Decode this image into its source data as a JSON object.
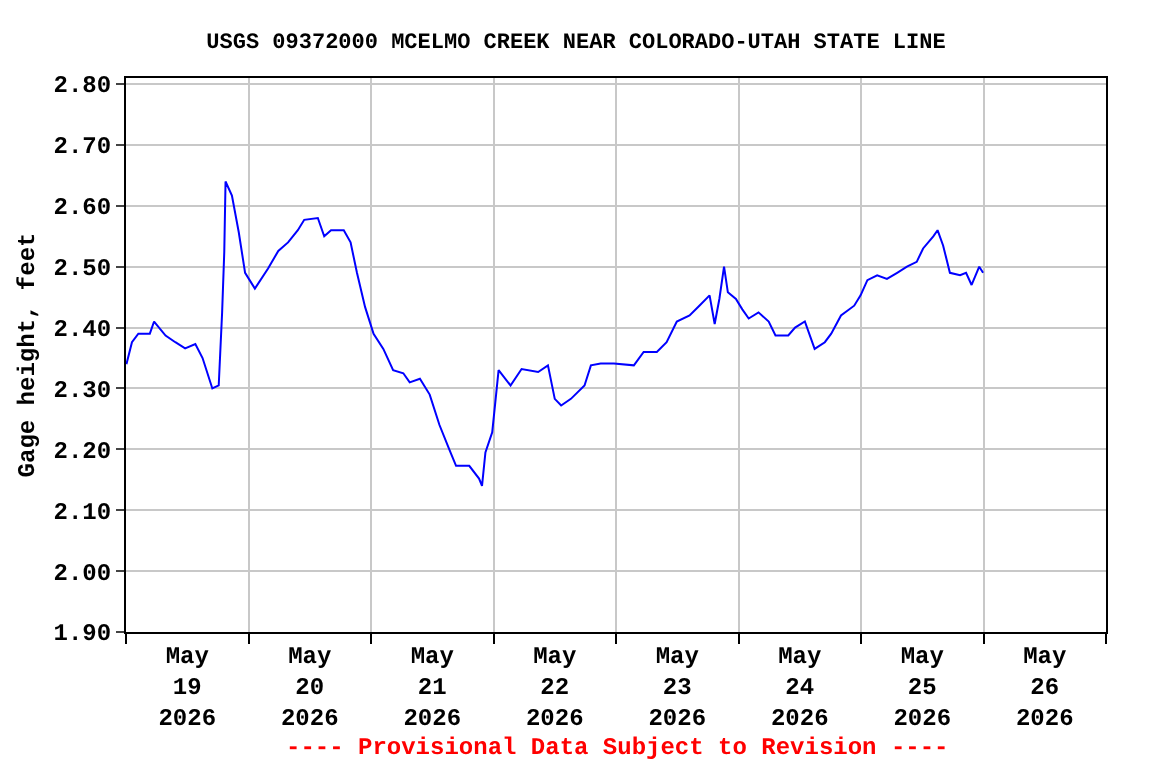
{
  "chart_data": {
    "type": "line",
    "title": "USGS 09372000 MCELMO CREEK NEAR COLORADO-UTAH STATE LINE",
    "ylabel": "Gage height, feet",
    "annotations": [
      "---- Provisional Data Subject to Revision ----"
    ],
    "x": [
      "2026-05-19T00:05",
      "2026-05-19T01:10",
      "2026-05-19T02:25",
      "2026-05-19T04:40",
      "2026-05-19T05:30",
      "2026-05-19T07:45",
      "2026-05-19T09:40",
      "2026-05-19T11:35",
      "2026-05-19T13:35",
      "2026-05-19T15:00",
      "2026-05-19T16:55",
      "2026-05-19T18:10",
      "2026-05-19T18:50",
      "2026-05-19T19:15",
      "2026-05-19T19:30",
      "2026-05-19T20:45",
      "2026-05-19T22:05",
      "2026-05-19T23:20",
      "2026-05-20T01:15",
      "2026-05-20T03:50",
      "2026-05-20T05:50",
      "2026-05-20T07:45",
      "2026-05-20T09:40",
      "2026-05-20T10:55",
      "2026-05-20T13:35",
      "2026-05-20T14:50",
      "2026-05-20T16:10",
      "2026-05-20T18:40",
      "2026-05-20T20:00",
      "2026-05-20T21:15",
      "2026-05-20T22:50",
      "2026-05-21T00:30",
      "2026-05-21T02:25",
      "2026-05-21T04:20",
      "2026-05-21T06:20",
      "2026-05-21T07:35",
      "2026-05-21T09:35",
      "2026-05-21T11:30",
      "2026-05-21T13:25",
      "2026-05-21T15:20",
      "2026-05-21T16:40",
      "2026-05-21T19:15",
      "2026-05-21T21:10",
      "2026-05-21T21:45",
      "2026-05-21T22:25",
      "2026-05-21T23:45",
      "2026-05-22T01:00",
      "2026-05-22T03:20",
      "2026-05-22T05:30",
      "2026-05-22T08:45",
      "2026-05-22T10:40",
      "2026-05-22T12:00",
      "2026-05-22T13:15",
      "2026-05-22T15:10",
      "2026-05-22T17:50",
      "2026-05-22T19:05",
      "2026-05-22T21:00",
      "2026-05-22T23:35",
      "2026-05-23T03:30",
      "2026-05-23T05:25",
      "2026-05-23T08:00",
      "2026-05-23T09:55",
      "2026-05-23T11:55",
      "2026-05-23T14:25",
      "2026-05-23T16:20",
      "2026-05-23T18:20",
      "2026-05-23T19:20",
      "2026-05-23T20:15",
      "2026-05-23T21:10",
      "2026-05-23T21:55",
      "2026-05-23T23:30",
      "2026-05-24T00:45",
      "2026-05-24T02:00",
      "2026-05-24T03:55",
      "2026-05-24T05:55",
      "2026-05-24T07:15",
      "2026-05-24T09:45",
      "2026-05-24T11:05",
      "2026-05-24T13:00",
      "2026-05-24T14:55",
      "2026-05-24T16:55",
      "2026-05-24T18:10",
      "2026-05-24T20:05",
      "2026-05-24T22:40",
      "2026-05-24T23:55",
      "2026-05-25T01:15",
      "2026-05-25T03:10",
      "2026-05-25T05:05",
      "2026-05-25T07:05",
      "2026-05-25T09:00",
      "2026-05-25T10:55",
      "2026-05-25T12:10",
      "2026-05-25T14:10",
      "2026-05-25T15:00",
      "2026-05-25T16:05",
      "2026-05-25T17:25",
      "2026-05-25T19:25",
      "2026-05-25T20:35",
      "2026-05-25T21:40",
      "2026-05-25T23:10",
      "2026-05-25T23:55"
    ],
    "series": [
      {
        "color": "#0000ff",
        "values": [
          2.34,
          2.376,
          2.39,
          2.39,
          2.41,
          2.387,
          2.376,
          2.366,
          2.373,
          2.35,
          2.3,
          2.305,
          2.425,
          2.524,
          2.64,
          2.617,
          2.557,
          2.49,
          2.464,
          2.497,
          2.526,
          2.54,
          2.56,
          2.577,
          2.58,
          2.55,
          2.56,
          2.56,
          2.54,
          2.49,
          2.434,
          2.39,
          2.365,
          2.33,
          2.325,
          2.31,
          2.316,
          2.29,
          2.24,
          2.2,
          2.173,
          2.173,
          2.152,
          2.14,
          2.195,
          2.228,
          2.33,
          2.305,
          2.332,
          2.327,
          2.338,
          2.283,
          2.272,
          2.283,
          2.305,
          2.338,
          2.341,
          2.341,
          2.338,
          2.36,
          2.36,
          2.376,
          2.41,
          2.42,
          2.436,
          2.453,
          2.406,
          2.447,
          2.5,
          2.458,
          2.447,
          2.43,
          2.415,
          2.425,
          2.41,
          2.387,
          2.387,
          2.4,
          2.41,
          2.365,
          2.376,
          2.39,
          2.42,
          2.436,
          2.453,
          2.478,
          2.486,
          2.48,
          2.49,
          2.5,
          2.508,
          2.53,
          2.55,
          2.56,
          2.535,
          2.49,
          2.486,
          2.49,
          2.47,
          2.5,
          2.49
        ]
      }
    ],
    "xlim": [
      "2026-05-19T00:00",
      "2026-05-27T00:00"
    ],
    "xticks": [
      {
        "value": "2026-05-19T00:00",
        "label": null
      },
      {
        "value": "2026-05-19T12:00",
        "label": "May\n19\n2026"
      },
      {
        "value": "2026-05-20T00:00",
        "label": null
      },
      {
        "value": "2026-05-20T12:00",
        "label": "May\n20\n2026"
      },
      {
        "value": "2026-05-21T00:00",
        "label": null
      },
      {
        "value": "2026-05-21T12:00",
        "label": "May\n21\n2026"
      },
      {
        "value": "2026-05-22T00:00",
        "label": null
      },
      {
        "value": "2026-05-22T12:00",
        "label": "May\n22\n2026"
      },
      {
        "value": "2026-05-23T00:00",
        "label": null
      },
      {
        "value": "2026-05-23T12:00",
        "label": "May\n23\n2026"
      },
      {
        "value": "2026-05-24T00:00",
        "label": null
      },
      {
        "value": "2026-05-24T12:00",
        "label": "May\n24\n2026"
      },
      {
        "value": "2026-05-25T00:00",
        "label": null
      },
      {
        "value": "2026-05-25T12:00",
        "label": "May\n25\n2026"
      },
      {
        "value": "2026-05-26T00:00",
        "label": null
      },
      {
        "value": "2026-05-26T12:00",
        "label": "May\n26\n2026"
      },
      {
        "value": "2026-05-27T00:00",
        "label": null
      }
    ],
    "ylim": [
      1.9,
      2.81
    ],
    "yticks": [
      {
        "value": 1.9,
        "label": "1.90"
      },
      {
        "value": 2.0,
        "label": "2.00"
      },
      {
        "value": 2.1,
        "label": "2.10"
      },
      {
        "value": 2.2,
        "label": "2.20"
      },
      {
        "value": 2.3,
        "label": "2.30"
      },
      {
        "value": 2.4,
        "label": "2.40"
      },
      {
        "value": 2.5,
        "label": "2.50"
      },
      {
        "value": 2.6,
        "label": "2.60"
      },
      {
        "value": 2.7,
        "label": "2.70"
      },
      {
        "value": 2.8,
        "label": "2.80"
      }
    ],
    "grid": true,
    "marker": "none",
    "line_style": "solid"
  }
}
